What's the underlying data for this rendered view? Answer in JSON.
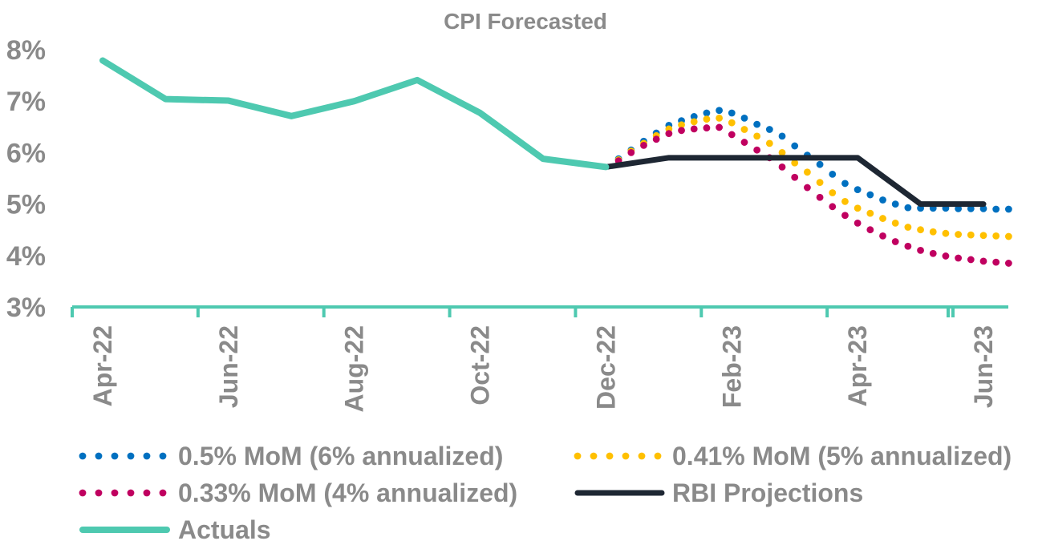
{
  "chart_data": {
    "type": "line",
    "title": "CPI Forecasted",
    "xlabel": "",
    "ylabel": "",
    "ylim": [
      3,
      8
    ],
    "y_ticks": [
      3,
      4,
      5,
      6,
      7,
      8
    ],
    "y_tick_labels": [
      "3%",
      "4%",
      "5%",
      "6%",
      "7%",
      "8%"
    ],
    "x_tick_labels": [
      "Apr-22",
      "Jun-22",
      "Aug-22",
      "Oct-22",
      "Dec-22",
      "Feb-23",
      "Apr-23",
      "Jun-23"
    ],
    "x_tick_months": [
      0,
      2,
      4,
      6,
      8,
      10,
      12,
      14
    ],
    "month_range": [
      0,
      14.95
    ],
    "legend_position": "bottom",
    "series": [
      {
        "name": "0.5% MoM (6% annualized)",
        "style": "dotted",
        "color": "#0070c0",
        "x": [
          8.2,
          8.4,
          8.6,
          8.8,
          9.0,
          9.2,
          9.4,
          9.6,
          9.8,
          10.0,
          10.2,
          10.4,
          10.6,
          10.8,
          11.0,
          11.2,
          11.4,
          11.6,
          11.8,
          12.0,
          12.2,
          12.4,
          12.6,
          12.8,
          13.0,
          13.2,
          13.4,
          13.6,
          13.8,
          14.0,
          14.2,
          14.4
        ],
        "values": [
          5.88,
          6.05,
          6.22,
          6.38,
          6.53,
          6.62,
          6.7,
          6.77,
          6.82,
          6.77,
          6.67,
          6.55,
          6.45,
          6.32,
          6.13,
          5.95,
          5.77,
          5.58,
          5.4,
          5.28,
          5.18,
          5.08,
          5.0,
          4.93,
          4.92,
          4.92,
          4.92,
          4.91,
          4.91,
          4.91,
          4.9,
          4.9
        ]
      },
      {
        "name": "0.41% MoM (5% annualized)",
        "style": "dotted",
        "color": "#ffc000",
        "x": [
          8.2,
          8.4,
          8.6,
          8.8,
          9.0,
          9.2,
          9.4,
          9.6,
          9.8,
          10.0,
          10.2,
          10.4,
          10.6,
          10.8,
          11.0,
          11.2,
          11.4,
          11.6,
          11.8,
          12.0,
          12.2,
          12.4,
          12.6,
          12.8,
          13.0,
          13.2,
          13.4,
          13.6,
          13.8,
          14.0,
          14.2,
          14.4
        ],
        "values": [
          5.86,
          6.03,
          6.18,
          6.33,
          6.46,
          6.54,
          6.6,
          6.65,
          6.67,
          6.58,
          6.45,
          6.32,
          6.18,
          6.0,
          5.8,
          5.62,
          5.42,
          5.22,
          5.05,
          4.92,
          4.82,
          4.72,
          4.63,
          4.55,
          4.5,
          4.46,
          4.43,
          4.41,
          4.4,
          4.39,
          4.38,
          4.37
        ]
      },
      {
        "name": "0.33% MoM (4% annualized)",
        "style": "dotted",
        "color": "#c00060",
        "x": [
          8.2,
          8.4,
          8.6,
          8.8,
          9.0,
          9.2,
          9.4,
          9.6,
          9.8,
          10.0,
          10.2,
          10.4,
          10.6,
          10.8,
          11.0,
          11.2,
          11.4,
          11.6,
          11.8,
          12.0,
          12.2,
          12.4,
          12.6,
          12.8,
          13.0,
          13.2,
          13.4,
          13.6,
          13.8,
          14.0,
          14.2,
          14.4
        ],
        "values": [
          5.84,
          6.0,
          6.14,
          6.26,
          6.37,
          6.43,
          6.46,
          6.48,
          6.49,
          6.35,
          6.2,
          6.05,
          5.9,
          5.72,
          5.52,
          5.32,
          5.13,
          4.95,
          4.78,
          4.63,
          4.5,
          4.38,
          4.27,
          4.18,
          4.1,
          4.04,
          3.99,
          3.95,
          3.92,
          3.89,
          3.87,
          3.85
        ]
      },
      {
        "name": "RBI Projections",
        "style": "solid-dark",
        "color": "#1e2733",
        "x": [
          8,
          9,
          10,
          11,
          12,
          13,
          14
        ],
        "values": [
          5.72,
          5.9,
          5.9,
          5.9,
          5.9,
          5.0,
          5.0
        ]
      },
      {
        "name": "Actuals",
        "style": "solid-teal",
        "color": "#4ec9b0",
        "x": [
          0,
          1,
          2,
          3,
          4,
          5,
          6,
          7,
          8
        ],
        "values": [
          7.79,
          7.04,
          7.01,
          6.71,
          7.0,
          7.41,
          6.77,
          5.88,
          5.72
        ]
      }
    ]
  }
}
